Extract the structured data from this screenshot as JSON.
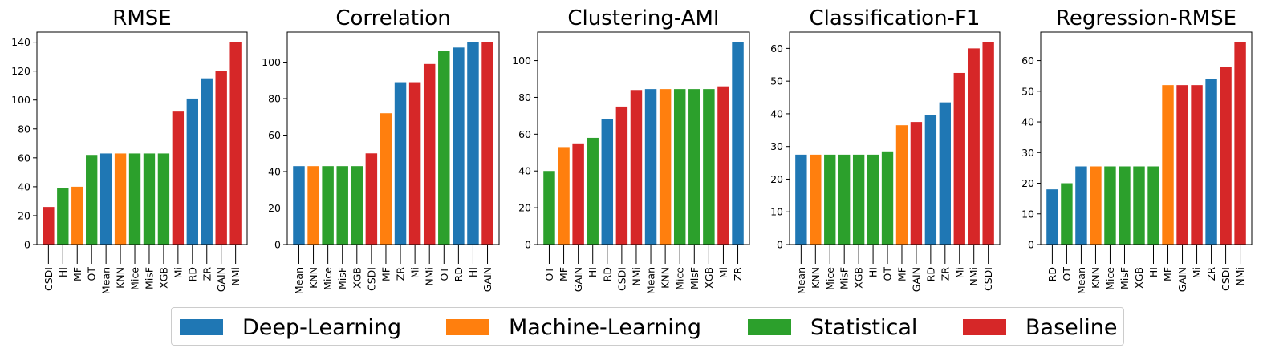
{
  "colors": {
    "Deep-Learning": "#1f77b4",
    "Machine-Learning": "#ff7f0e",
    "Statistical": "#2ca02c",
    "Baseline": "#d62728"
  },
  "legend": [
    {
      "label": "Deep-Learning",
      "color": "#1f77b4"
    },
    {
      "label": "Machine-Learning",
      "color": "#ff7f0e"
    },
    {
      "label": "Statistical",
      "color": "#2ca02c"
    },
    {
      "label": "Baseline",
      "color": "#d62728"
    }
  ],
  "chart_data": [
    {
      "type": "bar",
      "title": "RMSE",
      "categories": [
        "CSDI",
        "HI",
        "MF",
        "OT",
        "Mean",
        "KNN",
        "Mice",
        "MisF",
        "XGB",
        "Mi",
        "RD",
        "ZR",
        "GAIN",
        "NMi"
      ],
      "values": [
        26,
        39,
        40,
        62,
        63,
        63,
        63,
        63,
        63,
        92,
        101,
        115,
        120,
        140
      ],
      "groups": [
        "Baseline",
        "Statistical",
        "Machine-Learning",
        "Statistical",
        "Deep-Learning",
        "Machine-Learning",
        "Statistical",
        "Statistical",
        "Statistical",
        "Baseline",
        "Deep-Learning",
        "Deep-Learning",
        "Baseline",
        "Baseline"
      ],
      "ylim": [
        0,
        147
      ],
      "yticks": [
        0,
        20,
        40,
        60,
        80,
        100,
        120,
        140
      ]
    },
    {
      "type": "bar",
      "title": "Correlation",
      "categories": [
        "Mean",
        "KNN",
        "Mice",
        "MisF",
        "XGB",
        "CSDI",
        "MF",
        "ZR",
        "Mi",
        "NMi",
        "OT",
        "RD",
        "HI",
        "GAIN"
      ],
      "values": [
        43,
        43,
        43,
        43,
        43,
        50,
        72,
        89,
        89,
        99,
        106,
        108,
        111,
        111
      ],
      "groups": [
        "Deep-Learning",
        "Machine-Learning",
        "Statistical",
        "Statistical",
        "Statistical",
        "Baseline",
        "Machine-Learning",
        "Deep-Learning",
        "Baseline",
        "Baseline",
        "Statistical",
        "Deep-Learning",
        "Deep-Learning",
        "Baseline"
      ],
      "ylim": [
        0,
        116.5
      ],
      "yticks": [
        0,
        20,
        40,
        60,
        80,
        100
      ]
    },
    {
      "type": "bar",
      "title": "Clustering-AMI",
      "categories": [
        "OT",
        "MF",
        "GAIN",
        "HI",
        "RD",
        "CSDI",
        "NMi",
        "Mean",
        "KNN",
        "Mice",
        "MisF",
        "XGB",
        "Mi",
        "ZR"
      ],
      "values": [
        40,
        53,
        55,
        58,
        68,
        75,
        84,
        84.5,
        84.5,
        84.5,
        84.5,
        84.5,
        86,
        110
      ],
      "groups": [
        "Statistical",
        "Machine-Learning",
        "Baseline",
        "Statistical",
        "Deep-Learning",
        "Baseline",
        "Baseline",
        "Deep-Learning",
        "Machine-Learning",
        "Statistical",
        "Statistical",
        "Statistical",
        "Baseline",
        "Deep-Learning"
      ],
      "ylim": [
        0,
        115.5
      ],
      "yticks": [
        0,
        20,
        40,
        60,
        80,
        100
      ]
    },
    {
      "type": "bar",
      "title": "Classification-F1",
      "categories": [
        "Mean",
        "KNN",
        "Mice",
        "MisF",
        "XGB",
        "HI",
        "OT",
        "MF",
        "GAIN",
        "RD",
        "ZR",
        "Mi",
        "NMi",
        "CSDI"
      ],
      "values": [
        27.5,
        27.5,
        27.5,
        27.5,
        27.5,
        27.5,
        28.5,
        36.5,
        37.5,
        39.5,
        43.5,
        52.5,
        60,
        62
      ],
      "groups": [
        "Deep-Learning",
        "Machine-Learning",
        "Statistical",
        "Statistical",
        "Statistical",
        "Statistical",
        "Statistical",
        "Machine-Learning",
        "Baseline",
        "Deep-Learning",
        "Deep-Learning",
        "Baseline",
        "Baseline",
        "Baseline"
      ],
      "ylim": [
        0,
        65
      ],
      "yticks": [
        0,
        10,
        20,
        30,
        40,
        50,
        60
      ]
    },
    {
      "type": "bar",
      "title": "Regression-RMSE",
      "categories": [
        "RD",
        "OT",
        "Mean",
        "KNN",
        "Mice",
        "MisF",
        "XGB",
        "HI",
        "MF",
        "GAIN",
        "Mi",
        "ZR",
        "CSDI",
        "NMi"
      ],
      "values": [
        18,
        20,
        25.5,
        25.5,
        25.5,
        25.5,
        25.5,
        25.5,
        52,
        52,
        52,
        54,
        58,
        66
      ],
      "groups": [
        "Deep-Learning",
        "Statistical",
        "Deep-Learning",
        "Machine-Learning",
        "Statistical",
        "Statistical",
        "Statistical",
        "Statistical",
        "Machine-Learning",
        "Baseline",
        "Baseline",
        "Deep-Learning",
        "Baseline",
        "Baseline"
      ],
      "ylim": [
        0,
        69.3
      ],
      "yticks": [
        0,
        10,
        20,
        30,
        40,
        50,
        60
      ]
    }
  ]
}
